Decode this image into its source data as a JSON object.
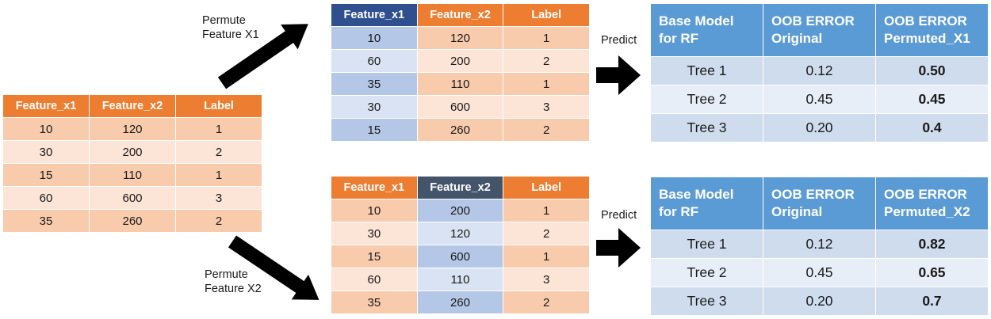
{
  "original": {
    "headers": [
      "Feature_x1",
      "Feature_x2",
      "Label"
    ],
    "rows": [
      [
        "10",
        "120",
        "1"
      ],
      [
        "30",
        "200",
        "2"
      ],
      [
        "15",
        "110",
        "1"
      ],
      [
        "60",
        "600",
        "3"
      ],
      [
        "35",
        "260",
        "2"
      ]
    ]
  },
  "permuted_x1": {
    "headers": [
      "Feature_x1",
      "Feature_x2",
      "Label"
    ],
    "rows": [
      [
        "10",
        "120",
        "1"
      ],
      [
        "60",
        "200",
        "2"
      ],
      [
        "35",
        "110",
        "1"
      ],
      [
        "30",
        "600",
        "3"
      ],
      [
        "15",
        "260",
        "2"
      ]
    ]
  },
  "permuted_x2": {
    "headers": [
      "Feature_x1",
      "Feature_x2",
      "Label"
    ],
    "rows": [
      [
        "10",
        "200",
        "1"
      ],
      [
        "30",
        "120",
        "2"
      ],
      [
        "15",
        "600",
        "1"
      ],
      [
        "60",
        "110",
        "3"
      ],
      [
        "35",
        "260",
        "2"
      ]
    ]
  },
  "labels": {
    "permute_x1": [
      "Permute",
      "Feature X1"
    ],
    "permute_x2": [
      "Permute",
      "Feature X2"
    ],
    "predict": "Predict"
  },
  "result_x1": {
    "headers": [
      [
        "Base Model",
        "for RF"
      ],
      [
        "OOB ERROR",
        "Original"
      ],
      [
        "OOB ERROR",
        "Permuted_X1"
      ]
    ],
    "rows": [
      [
        "Tree 1",
        "0.12",
        "0.50"
      ],
      [
        "Tree 2",
        "0.45",
        "0.45"
      ],
      [
        "Tree 3",
        "0.20",
        "0.4"
      ]
    ]
  },
  "result_x2": {
    "headers": [
      [
        "Base Model",
        "for RF"
      ],
      [
        "OOB ERROR",
        "Original"
      ],
      [
        "OOB ERROR",
        "Permuted_X2"
      ]
    ],
    "rows": [
      [
        "Tree 1",
        "0.12",
        "0.82"
      ],
      [
        "Tree 2",
        "0.45",
        "0.65"
      ],
      [
        "Tree 3",
        "0.20",
        "0.7"
      ]
    ]
  },
  "colors": {
    "header_orange": "#ed7d31",
    "row_orange_dark": "#f8cbad",
    "row_orange_light": "#fce4d6",
    "perm_blue_dark": "#b4c7e7",
    "perm_blue_light": "#dae3f3",
    "result_header": "#5b9bd5",
    "arrow": "#000000"
  }
}
